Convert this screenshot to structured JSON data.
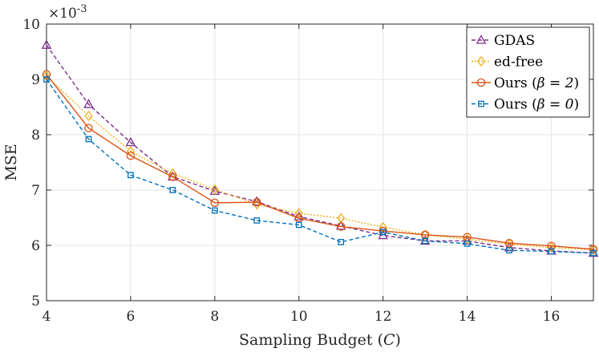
{
  "chart_data": {
    "type": "line",
    "title": "",
    "xlabel": "Sampling Budget (C)",
    "ylabel": "MSE",
    "xlim": [
      4,
      17
    ],
    "ylim": [
      5,
      10
    ],
    "y_multiplier": "×10-3",
    "y_multiplier_base": "×10",
    "y_multiplier_exp": "-3",
    "x_ticks": [
      4,
      6,
      8,
      10,
      12,
      14,
      16
    ],
    "y_ticks": [
      5,
      6,
      7,
      8,
      9,
      10
    ],
    "grid": true,
    "legend_position": "top-right",
    "x": [
      4,
      5,
      6,
      7,
      8,
      9,
      10,
      11,
      12,
      13,
      14,
      15,
      16,
      17
    ],
    "series": [
      {
        "name": "GDAS",
        "legend_prefix": "GDAS",
        "legend_math": "",
        "color": "#7E2F8E",
        "marker": "triangle",
        "dash": "5,3",
        "values": [
          9.62,
          8.55,
          7.86,
          7.24,
          6.98,
          6.79,
          6.52,
          6.35,
          6.18,
          6.08,
          6.08,
          5.96,
          5.9,
          5.86
        ]
      },
      {
        "name": "ed-free",
        "legend_prefix": "ed-free",
        "legend_math": "",
        "color": "#EDB120",
        "marker": "diamond",
        "dash": "2,2",
        "values": [
          9.06,
          8.34,
          7.7,
          7.3,
          7.01,
          6.74,
          6.58,
          6.49,
          6.33,
          6.19,
          6.11,
          6.02,
          5.96,
          5.92
        ]
      },
      {
        "name": "Ours (β = 2)",
        "legend_prefix": "Ours (",
        "legend_math": "β = 2",
        "color": "#D95319",
        "marker": "circle",
        "dash": "",
        "values": [
          9.09,
          8.12,
          7.62,
          7.24,
          6.77,
          6.78,
          6.49,
          6.34,
          6.26,
          6.19,
          6.15,
          6.04,
          5.99,
          5.93
        ]
      },
      {
        "name": "Ours (β = 0)",
        "legend_prefix": "Ours (",
        "legend_math": "β = 0",
        "color": "#0072BD",
        "marker": "square",
        "dash": "5,3",
        "values": [
          9.0,
          7.92,
          7.27,
          7.0,
          6.63,
          6.45,
          6.37,
          6.06,
          6.24,
          6.08,
          6.03,
          5.91,
          5.89,
          5.86
        ]
      }
    ]
  }
}
